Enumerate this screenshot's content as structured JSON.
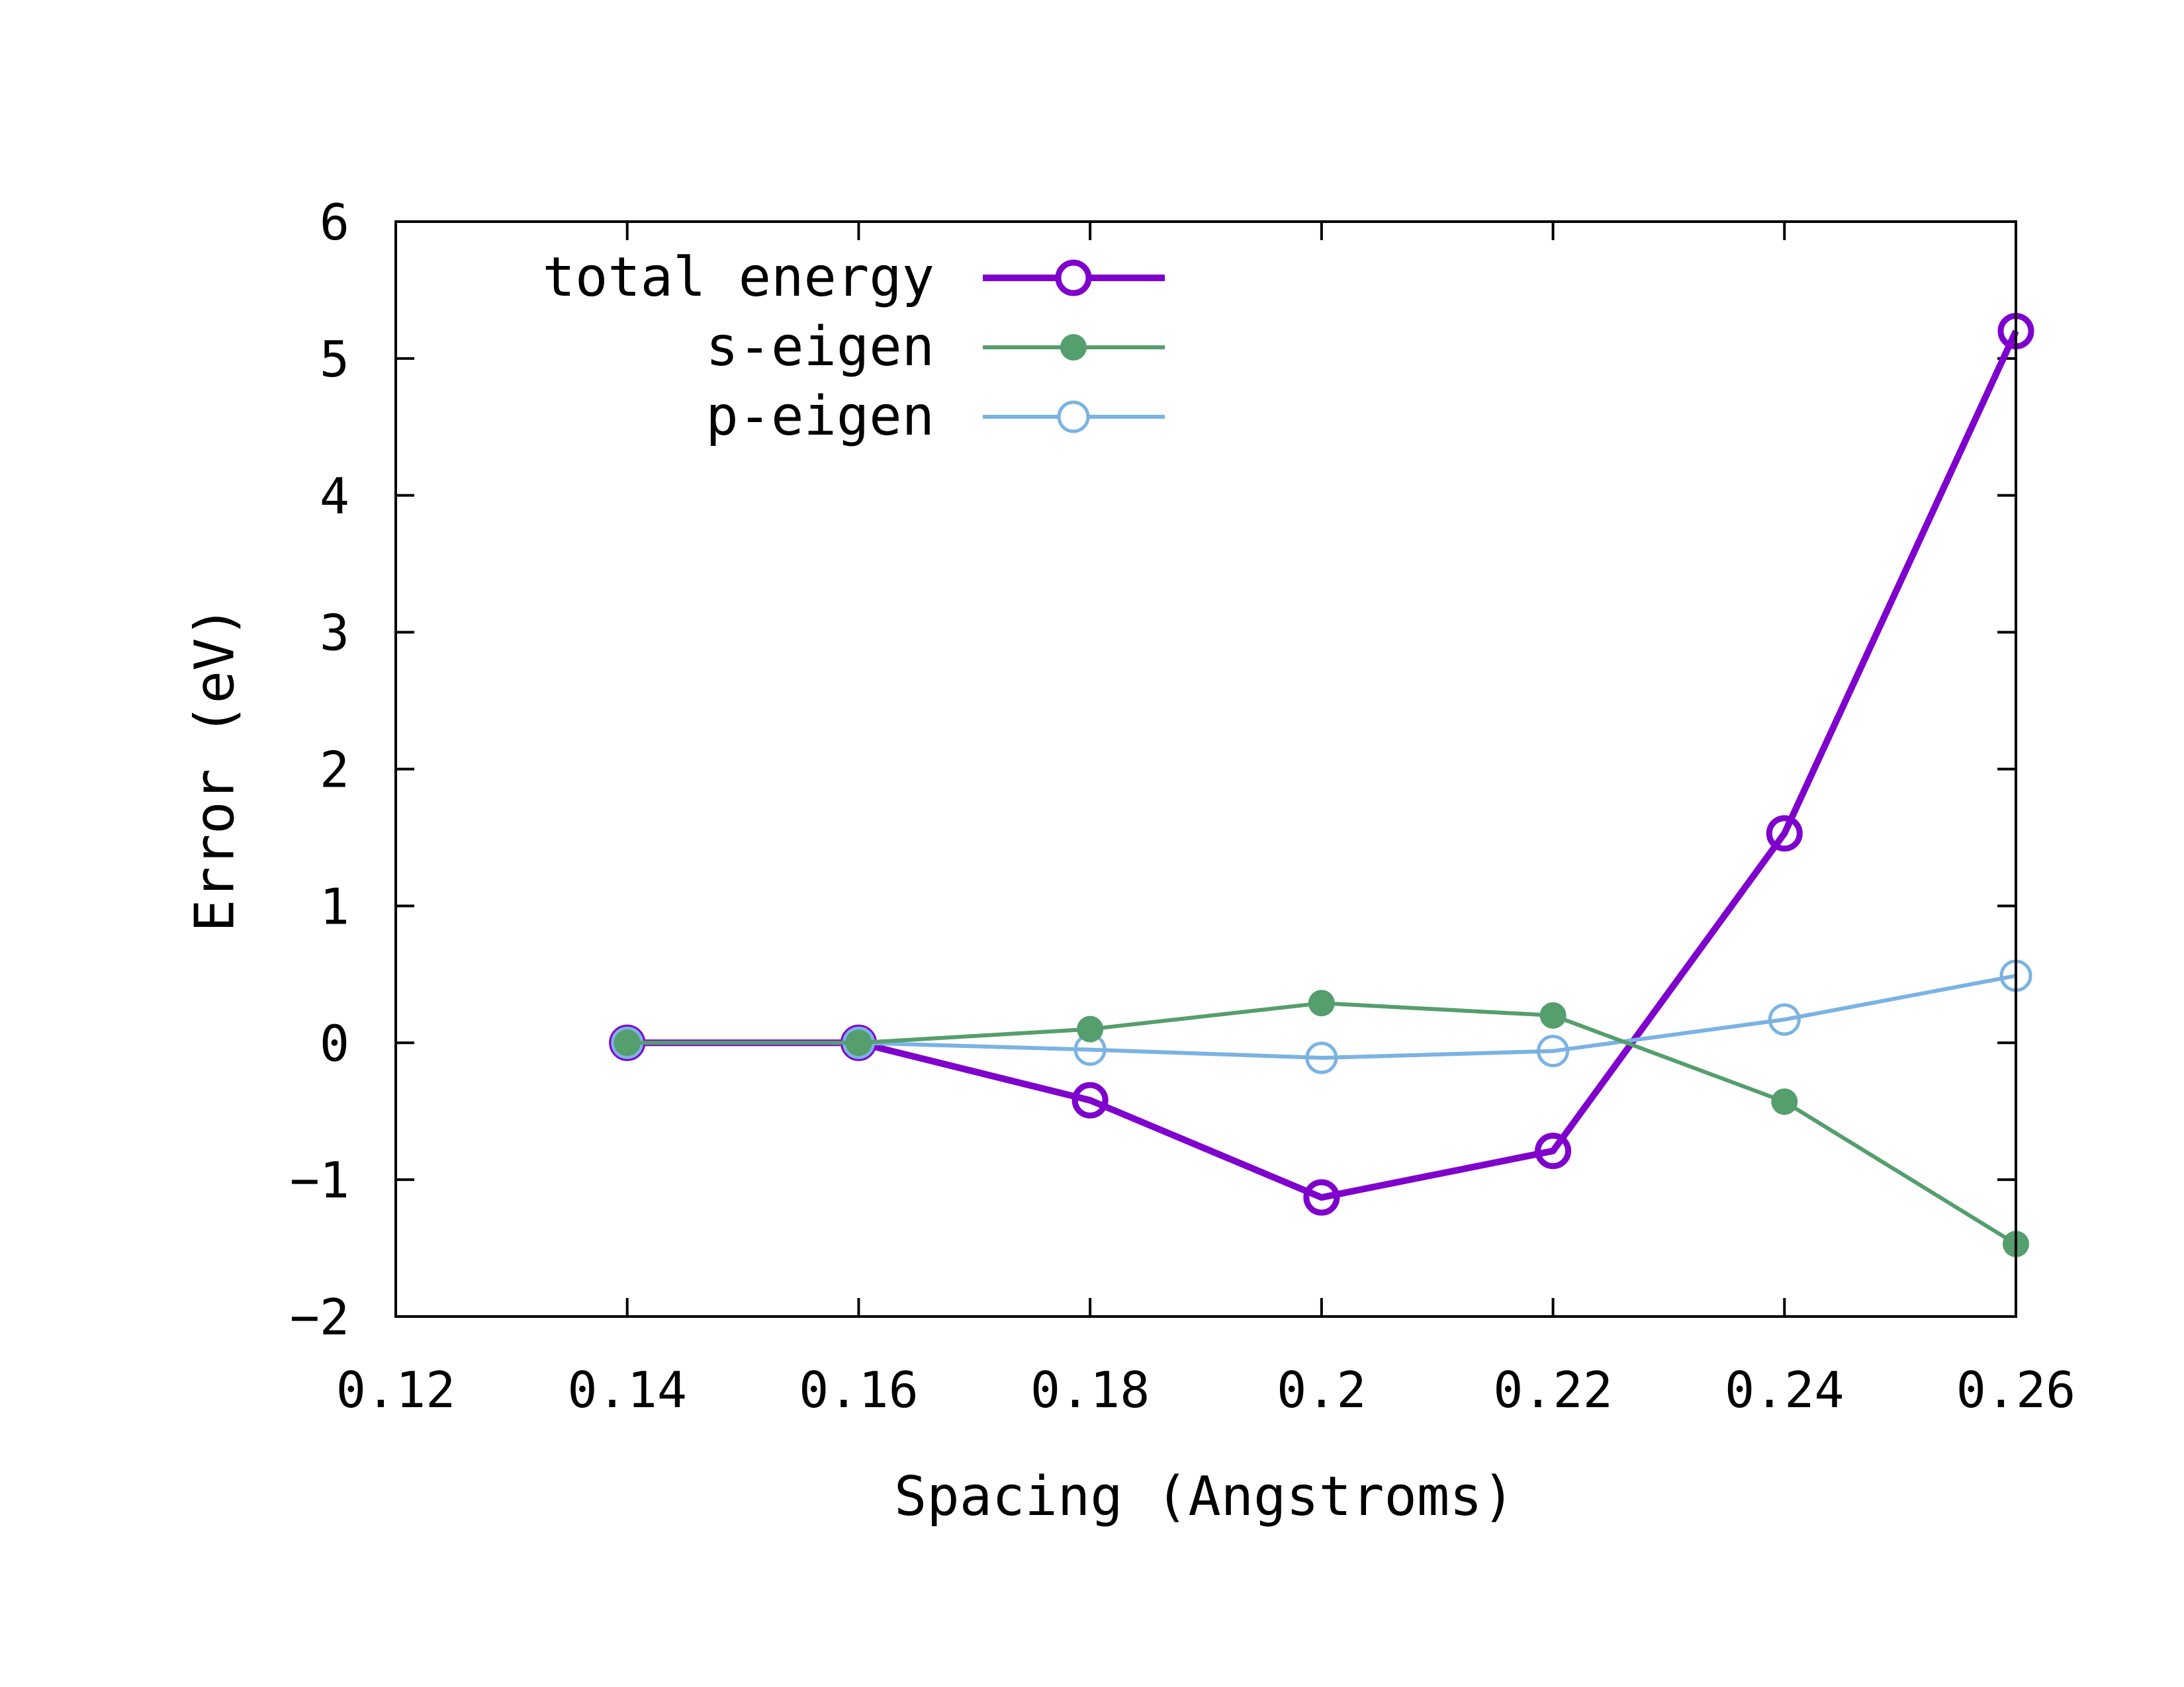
{
  "chart_data": {
    "type": "line",
    "xlabel": "Spacing (Angstroms)",
    "ylabel": "Error (eV)",
    "xlim": [
      0.12,
      0.26
    ],
    "ylim": [
      -2,
      6
    ],
    "x_ticks": [
      0.12,
      0.14,
      0.16,
      0.18,
      0.2,
      0.22,
      0.24,
      0.26
    ],
    "x_tick_labels": [
      "0.12",
      "0.14",
      "0.16",
      "0.18",
      "0.2",
      "0.22",
      "0.24",
      "0.26"
    ],
    "y_ticks": [
      -2,
      -1,
      0,
      1,
      2,
      3,
      4,
      5,
      6
    ],
    "y_tick_labels": [
      "−2",
      "−1",
      "0",
      "1",
      "2",
      "3",
      "4",
      "5",
      "6"
    ],
    "grid": false,
    "legend_position": "top-left",
    "series": [
      {
        "name": "total energy",
        "color": "#7f00cc",
        "marker": "open-circle",
        "x": [
          0.14,
          0.16,
          0.18,
          0.2,
          0.22,
          0.24,
          0.26
        ],
        "y": [
          0.0,
          0.0,
          -0.42,
          -1.13,
          -0.79,
          1.53,
          5.2
        ]
      },
      {
        "name": "s-eigen",
        "color": "#559e6d",
        "marker": "filled-circle",
        "x": [
          0.14,
          0.16,
          0.18,
          0.2,
          0.22,
          0.24,
          0.26
        ],
        "y": [
          0.0,
          0.0,
          0.1,
          0.29,
          0.2,
          -0.43,
          -1.47
        ]
      },
      {
        "name": "p-eigen",
        "color": "#7ab3e3",
        "marker": "open-circle",
        "x": [
          0.14,
          0.16,
          0.18,
          0.2,
          0.22,
          0.24,
          0.26
        ],
        "y": [
          0.0,
          0.0,
          -0.05,
          -0.11,
          -0.06,
          0.17,
          0.49
        ]
      }
    ]
  }
}
